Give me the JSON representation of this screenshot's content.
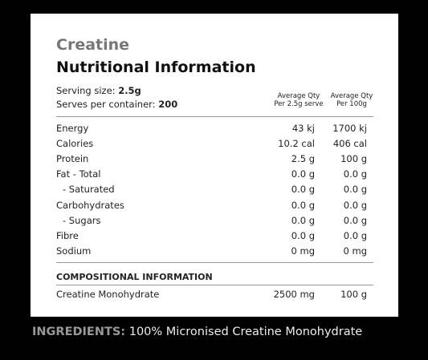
{
  "header": {
    "product": "Creatine",
    "title": "Nutritional Information"
  },
  "serving": [
    {
      "label": "Serving size:",
      "value": "2.5g"
    },
    {
      "label": "Serves per container:",
      "value": "200"
    }
  ],
  "columns": [
    [
      "Average Qty",
      "Per 2.5g serve"
    ],
    [
      "Average Qty",
      "Per 100g"
    ]
  ],
  "rows": [
    [
      "Energy",
      "43 kj",
      "1700 kj"
    ],
    [
      "Calories",
      "10.2 cal",
      "406 cal"
    ],
    [
      "Protein",
      "2.5 g",
      "100 g"
    ],
    [
      "Fat - Total",
      "0.0 g",
      "0.0 g"
    ],
    [
      "- Saturated",
      "0.0 g",
      "0.0 g"
    ],
    [
      "Carbohydrates",
      "0.0 g",
      "0.0 g"
    ],
    [
      "- Sugars",
      "0.0 g",
      "0.0 g"
    ],
    [
      "Fibre",
      "0.0 g",
      "0.0 g"
    ],
    [
      "Sodium",
      "0 mg",
      "0 mg"
    ]
  ],
  "composition": {
    "title": "COMPOSITIONAL INFORMATION",
    "rows": [
      [
        "Creatine Monohydrate",
        "2500 mg",
        "100 g"
      ]
    ]
  },
  "ingredients": {
    "label": "INGREDIENTS:",
    "text": "100% Micronised Creatine Monohydrate"
  }
}
